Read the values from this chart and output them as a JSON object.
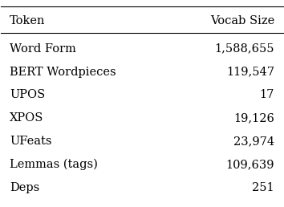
{
  "title_left": "Token",
  "title_right": "Vocab Size",
  "rows": [
    [
      "Word Form",
      "1,588,655"
    ],
    [
      "BERT Wordpieces",
      "119,547"
    ],
    [
      "UPOS",
      "17"
    ],
    [
      "XPOS",
      "19,126"
    ],
    [
      "UFeats",
      "23,974"
    ],
    [
      "Lemmas (tags)",
      "109,639"
    ],
    [
      "Deps",
      "251"
    ]
  ],
  "bg_color": "#ffffff",
  "text_color": "#000000",
  "font_size": 10.5,
  "header_font_size": 10.5
}
